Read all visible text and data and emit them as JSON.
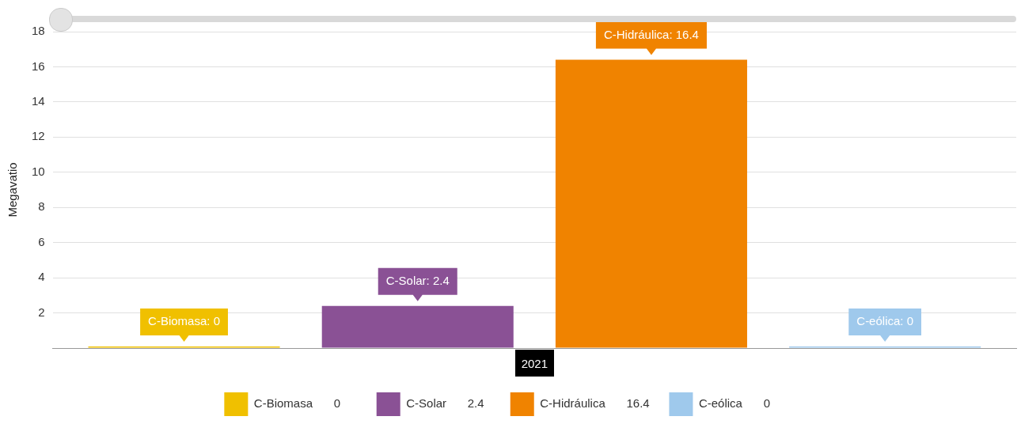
{
  "chart_data": {
    "type": "bar",
    "ylabel": "Megavatio",
    "categories": [
      "2021"
    ],
    "series": [
      {
        "name": "C-Biomasa",
        "color": "#f0c000",
        "values": [
          0
        ],
        "value_labels": [
          "C-Biomasa: 0"
        ]
      },
      {
        "name": "C-Solar",
        "color": "#8a5195",
        "values": [
          2.4
        ],
        "value_labels": [
          "C-Solar: 2.4"
        ]
      },
      {
        "name": "C-Hidráulica",
        "color": "#f08300",
        "values": [
          16.4
        ],
        "value_labels": [
          "C-Hidráulica: 16.4"
        ]
      },
      {
        "name": "C-eólica",
        "color": "#9fc9ec",
        "values": [
          0
        ],
        "value_labels": [
          "C-eólica: 0"
        ]
      }
    ],
    "ylim": [
      0,
      18
    ],
    "yticks": [
      {
        "value": 0,
        "label": null
      },
      2,
      4,
      6,
      8,
      10,
      12,
      14,
      16,
      18
    ],
    "annotations": [
      "0",
      "2.4",
      "16.4",
      "0"
    ],
    "grid": "y",
    "legend": "bottom"
  }
}
